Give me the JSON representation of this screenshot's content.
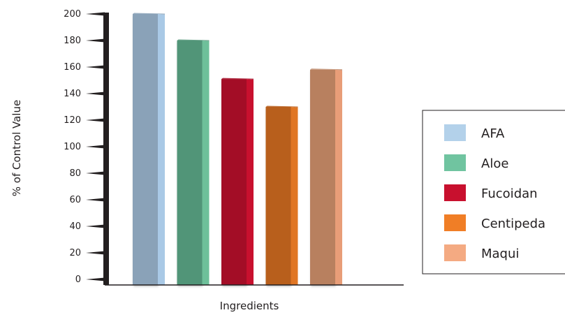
{
  "chart_data": {
    "type": "bar",
    "title": "",
    "xlabel": "Ingredients",
    "ylabel": "% of Control Value",
    "ylim": [
      0,
      200
    ],
    "yticks": [
      0,
      20,
      40,
      60,
      80,
      100,
      120,
      140,
      160,
      180,
      200
    ],
    "series": [
      {
        "name": "AFA",
        "value": 200,
        "color": "#b3d1ea",
        "front": "#8aa2b8",
        "side": "#a9c9e6"
      },
      {
        "name": "Aloe",
        "value": 180,
        "color": "#70c4a0",
        "front": "#519578",
        "side": "#6ec09a"
      },
      {
        "name": "Fucoidan",
        "value": 151,
        "color": "#c8102e",
        "front": "#a30c26",
        "side": "#c8102e"
      },
      {
        "name": "Centipeda",
        "value": 130,
        "color": "#f07e26",
        "front": "#b85e1c",
        "side": "#e07624"
      },
      {
        "name": "Maqui",
        "value": 158,
        "color": "#f4aa82",
        "front": "#b8805f",
        "side": "#e89d78"
      }
    ],
    "legend": {
      "position": "right"
    }
  }
}
